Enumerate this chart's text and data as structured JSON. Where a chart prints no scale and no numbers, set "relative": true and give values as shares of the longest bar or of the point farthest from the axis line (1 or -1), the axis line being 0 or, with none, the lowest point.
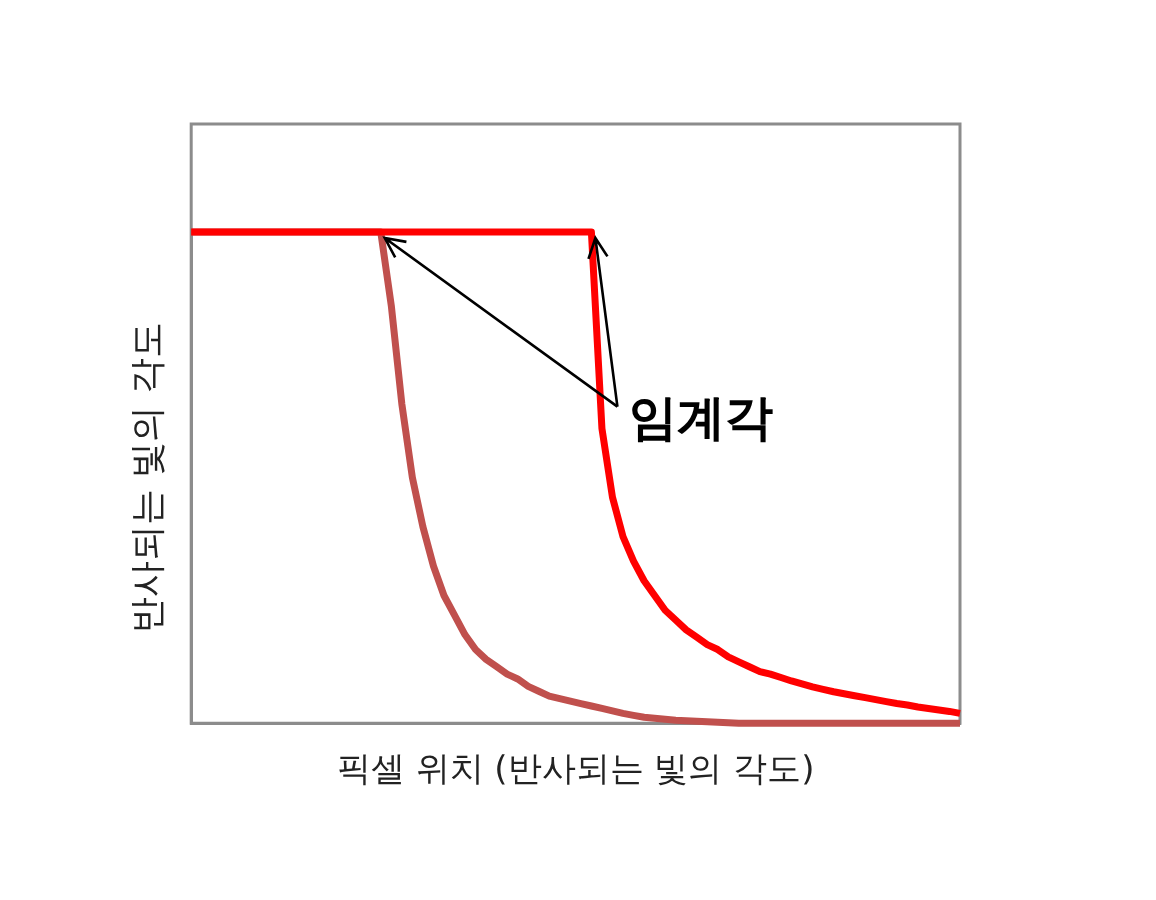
{
  "chart_data": {
    "type": "line",
    "relative": true,
    "xlabel": "픽셀 위치 (반사되는 빛의 각도)",
    "ylabel": "반사되는 빛의 각도",
    "annotations": [
      "임계각"
    ],
    "legend": false,
    "grid": false,
    "tick_labels": false,
    "marker": "none",
    "line_style": "solid",
    "categories": [
      null,
      null,
      null,
      null,
      null,
      null,
      null,
      null,
      null,
      null,
      null,
      null,
      null,
      null,
      null,
      null,
      null,
      null,
      null,
      null,
      null,
      null,
      null,
      null,
      null,
      null,
      null,
      null,
      null,
      null,
      null,
      null,
      null,
      null,
      null,
      null,
      null,
      null,
      null,
      null,
      null,
      null,
      null,
      null,
      null,
      null,
      null,
      null,
      null,
      null,
      null,
      null,
      null,
      null,
      null,
      null,
      null,
      null,
      null,
      null,
      null,
      null,
      null,
      null,
      null,
      null,
      null,
      null,
      null,
      null,
      null,
      null,
      null,
      null
    ],
    "series": [
      {
        "color": "#c0504d",
        "values": [
          1,
          1,
          1,
          1,
          1,
          1,
          1,
          1,
          1,
          1,
          1,
          1,
          1,
          1,
          1,
          1,
          1,
          1,
          1,
          0.85,
          0.65,
          0.5,
          0.4,
          0.32,
          0.26,
          0.22,
          0.18,
          0.15,
          0.13,
          0.115,
          0.1,
          0.09,
          0.075,
          0.065,
          0.055,
          0.05,
          0.045,
          0.04,
          0.035,
          0.03,
          0.025,
          0.02,
          0.016,
          0.012,
          0.01,
          0.008,
          0.006,
          0.005,
          0.004,
          0.003,
          0.002,
          0.001,
          0,
          0,
          0,
          0,
          0,
          0,
          0,
          0,
          0,
          0,
          0,
          0,
          0,
          0,
          0,
          0,
          0,
          0,
          0,
          0,
          0,
          0
        ]
      },
      {
        "color": "#ff0000",
        "values": [
          1,
          1,
          1,
          1,
          1,
          1,
          1,
          1,
          1,
          1,
          1,
          1,
          1,
          1,
          1,
          1,
          1,
          1,
          1,
          1,
          1,
          1,
          1,
          1,
          1,
          1,
          1,
          1,
          1,
          1,
          1,
          1,
          1,
          1,
          1,
          1,
          1,
          1,
          1,
          0.6,
          0.46,
          0.38,
          0.33,
          0.29,
          0.26,
          0.23,
          0.21,
          0.19,
          0.175,
          0.16,
          0.15,
          0.135,
          0.125,
          0.115,
          0.105,
          0.1,
          0.093,
          0.086,
          0.08,
          0.074,
          0.069,
          0.064,
          0.06,
          0.056,
          0.052,
          0.048,
          0.044,
          0.04,
          0.037,
          0.033,
          0.03,
          0.027,
          0.024,
          0.02
        ]
      }
    ]
  }
}
